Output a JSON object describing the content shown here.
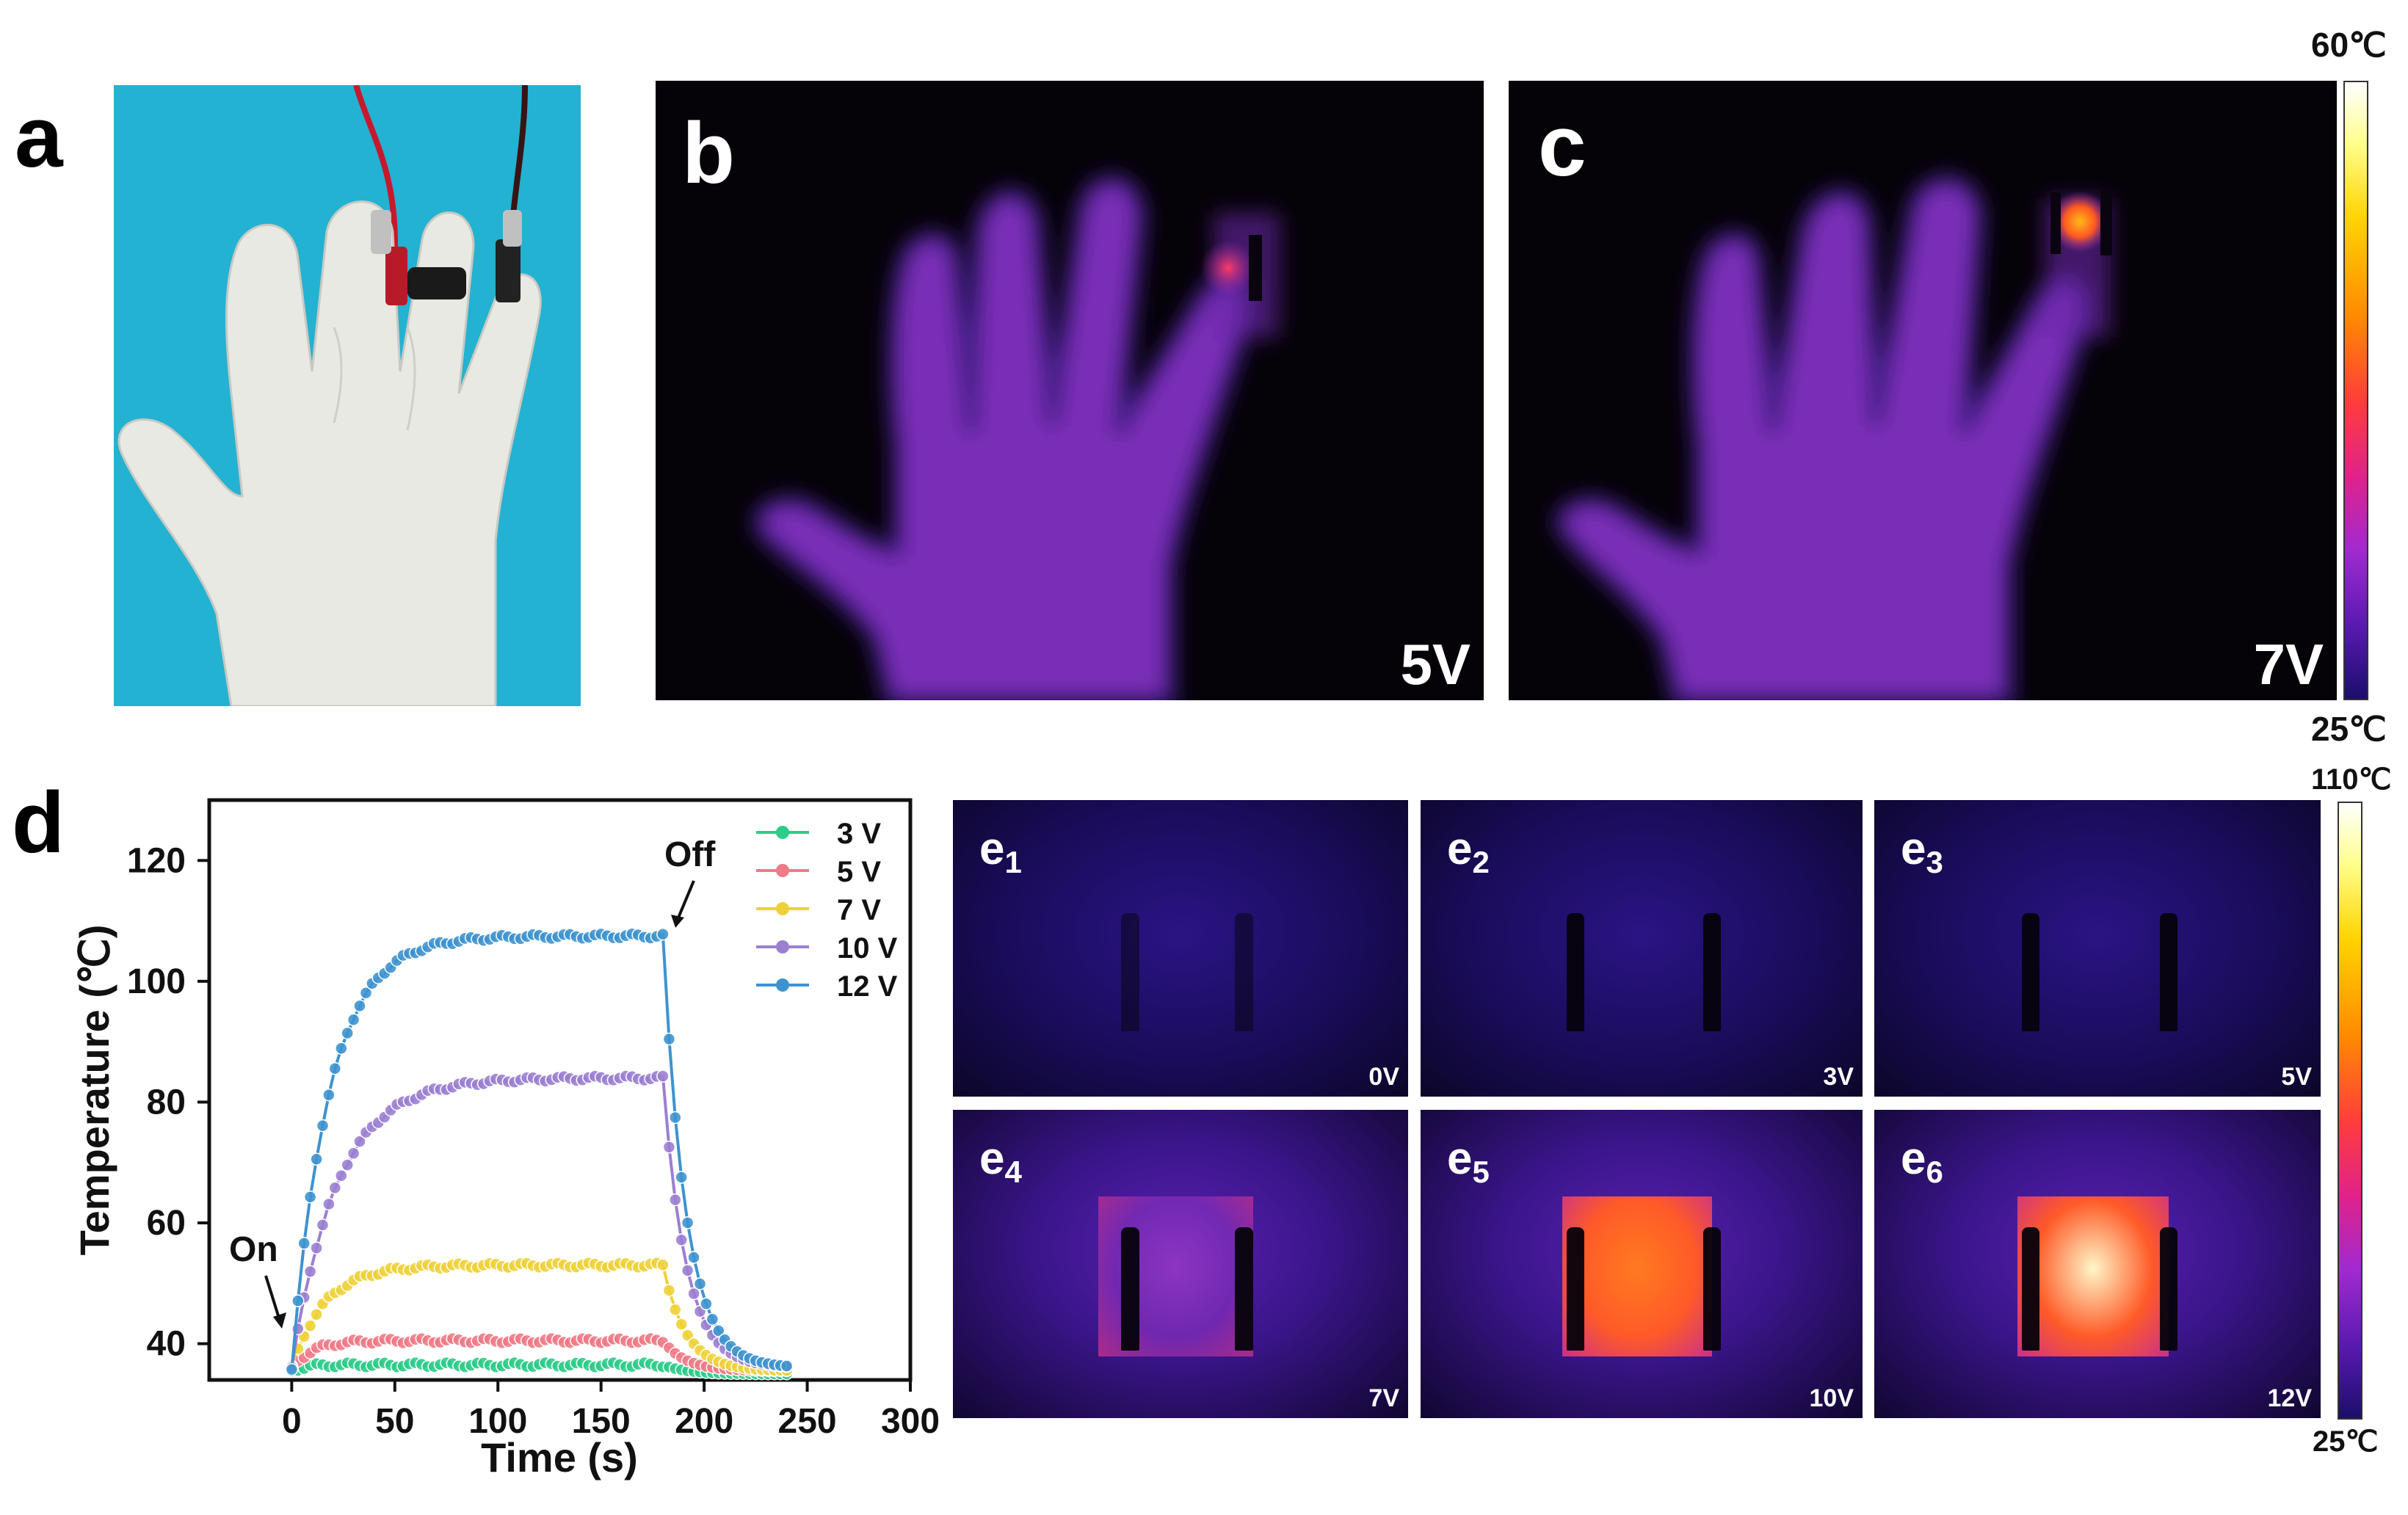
{
  "panels": {
    "a": "a",
    "b": "b",
    "c": "c",
    "d": "d",
    "e": [
      {
        "letter": "e",
        "index": "1",
        "voltage": "0V",
        "level": 0.0
      },
      {
        "letter": "e",
        "index": "2",
        "voltage": "3V",
        "level": 0.05
      },
      {
        "letter": "e",
        "index": "3",
        "voltage": "5V",
        "level": 0.1
      },
      {
        "letter": "e",
        "index": "4",
        "voltage": "7V",
        "level": 0.35
      },
      {
        "letter": "e",
        "index": "5",
        "voltage": "10V",
        "level": 0.75
      },
      {
        "letter": "e",
        "index": "6",
        "voltage": "12V",
        "level": 1.0
      }
    ]
  },
  "thermal_top": {
    "b_voltage": "5V",
    "c_voltage": "7V",
    "colorbar_max": "60℃",
    "colorbar_min": "25℃"
  },
  "thermal_bottom": {
    "colorbar_max": "110℃",
    "colorbar_min": "25℃"
  },
  "colors": {
    "s3": "#2ecc8a",
    "s5": "#f07a86",
    "s7": "#eed13a",
    "s10": "#9b7fd1",
    "s12": "#3e93cf"
  },
  "chart_data": {
    "type": "line",
    "xlabel": "Time (s)",
    "ylabel": "Temperature (℃)",
    "xlim": [
      -40,
      300
    ],
    "ylim": [
      34,
      130
    ],
    "xticks": [
      0,
      50,
      100,
      150,
      200,
      250,
      300
    ],
    "yticks": [
      40,
      60,
      80,
      100,
      120
    ],
    "legend_position": "top-right",
    "annotations": [
      {
        "text": "On",
        "x": 0,
        "y": 36
      },
      {
        "text": "Off",
        "x": 180,
        "y": 107.5
      }
    ],
    "on_time": 0,
    "off_time": 180,
    "end_time": 240,
    "sample_interval": 3,
    "series": [
      {
        "name": "3  V",
        "key": "s3",
        "start": 35.5,
        "plateau": 36.5,
        "end": 35
      },
      {
        "name": "5  V",
        "key": "s5",
        "start": 36,
        "plateau": 40.5,
        "end": 35.5
      },
      {
        "name": "7  V",
        "key": "s7",
        "start": 36,
        "plateau": 53,
        "end": 35.5
      },
      {
        "name": "10  V",
        "key": "s10",
        "start": 36,
        "plateau": 84,
        "end": 36
      },
      {
        "name": "12  V",
        "key": "s12",
        "start": 36,
        "plateau": 107.5,
        "end": 36
      }
    ]
  }
}
